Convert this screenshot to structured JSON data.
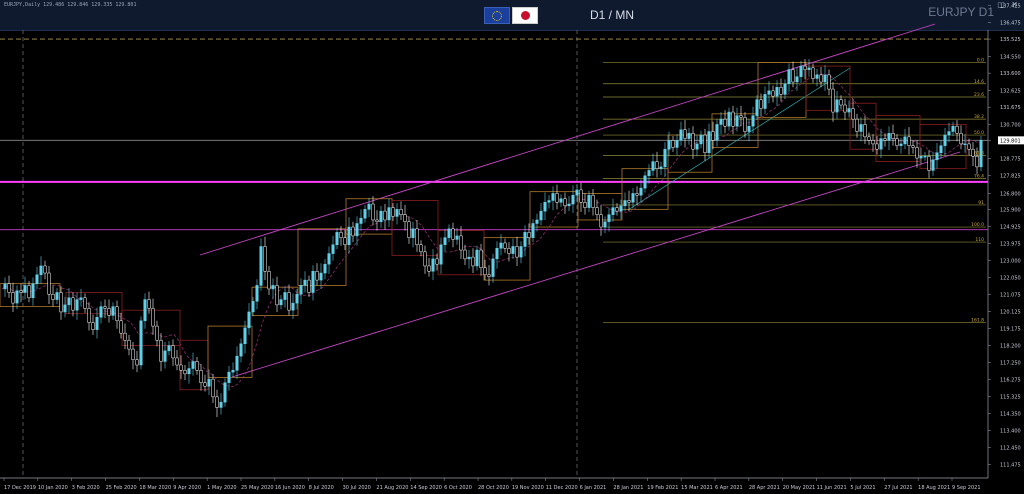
{
  "window": {
    "info_line": "EURJPY,Daily  129.486 129.846 129.335 129.801",
    "timeframe_label": "D1 / MN",
    "symbol_label": "EURJPY D1",
    "controls": "▢ ✕",
    "flags": [
      "eu-flag-icon",
      "japan-flag-icon"
    ]
  },
  "chart_data": {
    "type": "candlestick",
    "symbol": "EURJPY",
    "timeframe": "D1",
    "y_axis": {
      "ylim": [
        111.0,
        137.5
      ],
      "ticks": [
        "137.425",
        "136.475",
        "135.525",
        "134.550",
        "133.600",
        "132.625",
        "131.675",
        "130.700",
        "129.801",
        "128.775",
        "127.825",
        "126.800",
        "125.900",
        "124.925",
        "123.975",
        "123.000",
        "122.050",
        "121.075",
        "120.125",
        "119.175",
        "118.200",
        "117.250",
        "116.275",
        "115.325",
        "114.350",
        "113.400",
        "112.450",
        "111.475"
      ],
      "current_price": "129.801"
    },
    "x_axis": {
      "ticks": [
        "17 Dec 2019",
        "10 Jan 2020",
        "3 Feb 2020",
        "25 Feb 2020",
        "18 Mar 2020",
        "9 Apr 2020",
        "1 May 2020",
        "25 May 2020",
        "16 Jun 2020",
        "8 Jul 2020",
        "30 Jul 2020",
        "21 Aug 2020",
        "14 Sep 2020",
        "6 Oct 2020",
        "28 Oct 2020",
        "19 Nov 2020",
        "11 Dec 2020",
        "6 Jan 2021",
        "28 Jan 2021",
        "19 Feb 2021",
        "15 Mar 2021",
        "6 Apr 2021",
        "28 Apr 2021",
        "20 May 2021",
        "11 Jun 2021",
        "5 Jul 2021",
        "27 Jul 2021",
        "18 Aug 2021",
        "9 Sep 2021"
      ]
    },
    "price_path": [
      [
        0,
        121.4
      ],
      [
        4,
        121.7
      ],
      [
        8,
        121.2
      ],
      [
        12,
        120.6
      ],
      [
        16,
        121.3
      ],
      [
        20,
        121.2
      ],
      [
        24,
        121.6
      ],
      [
        28,
        120.9
      ],
      [
        32,
        121.7
      ],
      [
        36,
        122.2
      ],
      [
        40,
        122.7
      ],
      [
        44,
        122.3
      ],
      [
        48,
        121.1
      ],
      [
        52,
        120.8
      ],
      [
        56,
        121.2
      ],
      [
        60,
        120.1
      ],
      [
        64,
        120.5
      ],
      [
        68,
        120.9
      ],
      [
        72,
        120.2
      ],
      [
        76,
        120.8
      ],
      [
        80,
        120.9
      ],
      [
        84,
        120.3
      ],
      [
        88,
        119.5
      ],
      [
        92,
        119.1
      ],
      [
        96,
        119.8
      ],
      [
        100,
        120.4
      ],
      [
        104,
        120.3
      ],
      [
        108,
        119.9
      ],
      [
        112,
        120.4
      ],
      [
        116,
        119.6
      ],
      [
        120,
        118.9
      ],
      [
        124,
        118.5
      ],
      [
        128,
        118.0
      ],
      [
        132,
        117.4
      ],
      [
        136,
        117.1
      ],
      [
        140,
        119.6
      ],
      [
        144,
        120.8
      ],
      [
        148,
        120.3
      ],
      [
        152,
        119.3
      ],
      [
        156,
        118.5
      ],
      [
        160,
        117.3
      ],
      [
        164,
        117.9
      ],
      [
        168,
        118.2
      ],
      [
        172,
        117.5
      ],
      [
        176,
        117.1
      ],
      [
        180,
        116.8
      ],
      [
        184,
        116.6
      ],
      [
        188,
        116.9
      ],
      [
        192,
        117.3
      ],
      [
        196,
        116.8
      ],
      [
        200,
        116.1
      ],
      [
        204,
        115.9
      ],
      [
        208,
        116.3
      ],
      [
        212,
        115.3
      ],
      [
        216,
        114.7
      ],
      [
        220,
        115.0
      ],
      [
        224,
        116.1
      ],
      [
        228,
        116.7
      ],
      [
        232,
        116.8
      ],
      [
        236,
        117.6
      ],
      [
        240,
        118.3
      ],
      [
        244,
        119.2
      ],
      [
        248,
        120.1
      ],
      [
        252,
        120.7
      ],
      [
        256,
        121.6
      ],
      [
        260,
        123.8
      ],
      [
        264,
        122.4
      ],
      [
        268,
        121.4
      ],
      [
        272,
        121.6
      ],
      [
        276,
        120.5
      ],
      [
        280,
        120.8
      ],
      [
        284,
        121.2
      ],
      [
        288,
        120.2
      ],
      [
        292,
        120.6
      ],
      [
        296,
        121.1
      ],
      [
        300,
        121.6
      ],
      [
        304,
        121.9
      ],
      [
        308,
        121.2
      ],
      [
        312,
        122.4
      ],
      [
        316,
        121.9
      ],
      [
        320,
        122.3
      ],
      [
        324,
        122.8
      ],
      [
        328,
        123.4
      ],
      [
        332,
        123.9
      ],
      [
        336,
        124.6
      ],
      [
        340,
        124.3
      ],
      [
        344,
        123.9
      ],
      [
        348,
        124.9
      ],
      [
        352,
        124.4
      ],
      [
        356,
        125.1
      ],
      [
        360,
        125.4
      ],
      [
        364,
        125.9
      ],
      [
        368,
        126.2
      ],
      [
        372,
        125.3
      ],
      [
        376,
        125.2
      ],
      [
        380,
        125.8
      ],
      [
        384,
        125.3
      ],
      [
        388,
        126.0
      ],
      [
        392,
        125.5
      ],
      [
        396,
        125.9
      ],
      [
        400,
        125.6
      ],
      [
        404,
        125.2
      ],
      [
        408,
        124.3
      ],
      [
        412,
        124.8
      ],
      [
        416,
        123.9
      ],
      [
        420,
        123.5
      ],
      [
        424,
        122.7
      ],
      [
        428,
        122.4
      ],
      [
        432,
        123.1
      ],
      [
        436,
        122.8
      ],
      [
        440,
        123.9
      ],
      [
        444,
        124.3
      ],
      [
        448,
        124.8
      ],
      [
        452,
        124.2
      ],
      [
        456,
        124.4
      ],
      [
        460,
        123.6
      ],
      [
        464,
        123.1
      ],
      [
        468,
        123.2
      ],
      [
        472,
        122.7
      ],
      [
        476,
        123.6
      ],
      [
        480,
        122.6
      ],
      [
        484,
        122.2
      ],
      [
        488,
        122.1
      ],
      [
        492,
        123.1
      ],
      [
        496,
        123.7
      ],
      [
        500,
        124.0
      ],
      [
        504,
        123.7
      ],
      [
        508,
        123.4
      ],
      [
        512,
        123.8
      ],
      [
        516,
        123.2
      ],
      [
        520,
        123.8
      ],
      [
        524,
        124.6
      ],
      [
        528,
        124.3
      ],
      [
        532,
        125.1
      ],
      [
        536,
        125.3
      ],
      [
        540,
        125.8
      ],
      [
        544,
        126.3
      ],
      [
        548,
        126.4
      ],
      [
        552,
        126.8
      ],
      [
        556,
        126.3
      ],
      [
        560,
        126.5
      ],
      [
        564,
        126.1
      ],
      [
        568,
        126.2
      ],
      [
        572,
        126.7
      ],
      [
        576,
        127.0
      ],
      [
        580,
        126.3
      ],
      [
        584,
        126.0
      ],
      [
        588,
        126.7
      ],
      [
        592,
        126.0
      ],
      [
        596,
        125.6
      ],
      [
        600,
        124.9
      ],
      [
        604,
        125.2
      ],
      [
        608,
        125.6
      ],
      [
        612,
        126.0
      ],
      [
        616,
        125.8
      ],
      [
        620,
        126.1
      ],
      [
        624,
        126.4
      ],
      [
        628,
        126.3
      ],
      [
        632,
        126.8
      ],
      [
        636,
        126.7
      ],
      [
        640,
        127.1
      ],
      [
        644,
        127.8
      ],
      [
        648,
        128.1
      ],
      [
        652,
        128.6
      ],
      [
        656,
        128.2
      ],
      [
        660,
        128.3
      ],
      [
        664,
        129.3
      ],
      [
        668,
        129.8
      ],
      [
        672,
        129.4
      ],
      [
        676,
        129.8
      ],
      [
        680,
        130.4
      ],
      [
        684,
        129.9
      ],
      [
        688,
        130.2
      ],
      [
        692,
        129.3
      ],
      [
        696,
        129.6
      ],
      [
        700,
        130.1
      ],
      [
        704,
        129.1
      ],
      [
        708,
        130.3
      ],
      [
        712,
        129.8
      ],
      [
        716,
        130.7
      ],
      [
        720,
        131.0
      ],
      [
        724,
        130.6
      ],
      [
        728,
        131.4
      ],
      [
        732,
        130.6
      ],
      [
        736,
        131.2
      ],
      [
        740,
        131.1
      ],
      [
        744,
        130.3
      ],
      [
        748,
        130.6
      ],
      [
        752,
        131.2
      ],
      [
        756,
        132.1
      ],
      [
        760,
        131.6
      ],
      [
        764,
        132.4
      ],
      [
        768,
        132.6
      ],
      [
        772,
        132.3
      ],
      [
        776,
        132.8
      ],
      [
        780,
        132.4
      ],
      [
        784,
        133.0
      ],
      [
        788,
        133.8
      ],
      [
        792,
        133.1
      ],
      [
        796,
        133.4
      ],
      [
        800,
        134.0
      ],
      [
        804,
        133.8
      ],
      [
        808,
        133.9
      ],
      [
        812,
        133.3
      ],
      [
        816,
        133.5
      ],
      [
        820,
        133.1
      ],
      [
        824,
        133.5
      ],
      [
        828,
        132.7
      ],
      [
        832,
        131.4
      ],
      [
        836,
        132.1
      ],
      [
        840,
        131.8
      ],
      [
        844,
        131.4
      ],
      [
        848,
        131.6
      ],
      [
        852,
        131.0
      ],
      [
        856,
        130.3
      ],
      [
        860,
        130.7
      ],
      [
        864,
        130.0
      ],
      [
        868,
        129.8
      ],
      [
        872,
        129.6
      ],
      [
        876,
        129.3
      ],
      [
        880,
        129.9
      ],
      [
        884,
        129.8
      ],
      [
        888,
        130.2
      ],
      [
        892,
        129.9
      ],
      [
        896,
        129.5
      ],
      [
        900,
        129.6
      ],
      [
        904,
        130.0
      ],
      [
        908,
        129.5
      ],
      [
        912,
        129.4
      ],
      [
        916,
        128.8
      ],
      [
        920,
        128.9
      ],
      [
        924,
        128.9
      ],
      [
        928,
        128.1
      ],
      [
        932,
        128.7
      ],
      [
        936,
        129.1
      ],
      [
        940,
        129.5
      ],
      [
        944,
        130.1
      ],
      [
        948,
        130.3
      ],
      [
        952,
        130.6
      ],
      [
        956,
        130.2
      ],
      [
        960,
        129.6
      ],
      [
        964,
        129.6
      ],
      [
        968,
        129.3
      ],
      [
        972,
        128.9
      ],
      [
        976,
        128.3
      ],
      [
        980,
        129.8
      ]
    ],
    "fibonacci_levels": [
      {
        "label": "0.0",
        "price": 134.2
      },
      {
        "label": "14.6",
        "price": 133.0
      },
      {
        "label": "23.6",
        "price": 132.25
      },
      {
        "label": "38.2",
        "price": 131.0
      },
      {
        "label": "50.0",
        "price": 130.1
      },
      {
        "label": "61.8",
        "price": 128.95
      },
      {
        "label": "76.4",
        "price": 127.65
      },
      {
        "label": "91",
        "price": 126.15
      },
      {
        "label": "100.0",
        "price": 124.9
      },
      {
        "label": "110",
        "price": 124.05
      },
      {
        "label": "161.8",
        "price": 119.5
      }
    ],
    "horizontal_lines": [
      {
        "price": 135.525,
        "color": "#b09a4a",
        "style": "dashed"
      },
      {
        "price": 127.45,
        "color": "#ff40ff",
        "style": "solid",
        "width": 2
      },
      {
        "price": 124.75,
        "color": "#c93ec9",
        "style": "solid"
      },
      {
        "price": 129.801,
        "color": "#8a8a8a",
        "style": "solid"
      }
    ],
    "grid": false,
    "legend": "none"
  }
}
